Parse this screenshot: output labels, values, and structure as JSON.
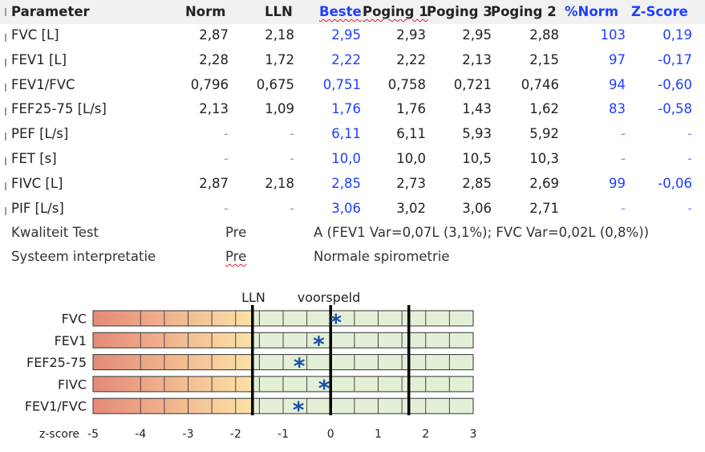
{
  "table": {
    "headers": {
      "parameter": "Parameter",
      "norm": "Norm",
      "lln": "LLN",
      "best": "Beste",
      "t1": "Poging 1",
      "t2": "Poging 3",
      "t3": "Poging 2",
      "pct": "%Norm",
      "z": "Z-Score"
    },
    "rows": [
      {
        "param": "FVC [L]",
        "norm": "2,87",
        "lln": "2,18",
        "best": "2,95",
        "t1": "2,93",
        "t2": "2,95",
        "t3": "2,88",
        "pct": "103",
        "z": "0,19"
      },
      {
        "param": "FEV1 [L]",
        "norm": "2,28",
        "lln": "1,72",
        "best": "2,22",
        "t1": "2,22",
        "t2": "2,13",
        "t3": "2,15",
        "pct": "97",
        "z": "-0,17"
      },
      {
        "param": "FEV1/FVC",
        "norm": "0,796",
        "lln": "0,675",
        "best": "0,751",
        "t1": "0,758",
        "t2": "0,721",
        "t3": "0,746",
        "pct": "94",
        "z": "-0,60"
      },
      {
        "param": "FEF25-75 [L/s]",
        "norm": "2,13",
        "lln": "1,09",
        "best": "1,76",
        "t1": "1,76",
        "t2": "1,43",
        "t3": "1,62",
        "pct": "83",
        "z": "-0,58"
      },
      {
        "param": "PEF [L/s]",
        "norm": "-",
        "lln": "-",
        "best": "6,11",
        "t1": "6,11",
        "t2": "5,93",
        "t3": "5,92",
        "pct": "-",
        "z": "-"
      },
      {
        "param": "FET [s]",
        "norm": "-",
        "lln": "-",
        "best": "10,0",
        "t1": "10,0",
        "t2": "10,5",
        "t3": "10,3",
        "pct": "-",
        "z": "-"
      },
      {
        "param": "FIVC [L]",
        "norm": "2,87",
        "lln": "2,18",
        "best": "2,85",
        "t1": "2,73",
        "t2": "2,85",
        "t3": "2,69",
        "pct": "99",
        "z": "-0,06"
      },
      {
        "param": "PIF [L/s]",
        "norm": "-",
        "lln": "-",
        "best": "3,06",
        "t1": "3,02",
        "t2": "3,06",
        "t3": "2,71",
        "pct": "-",
        "z": "-"
      }
    ]
  },
  "quality": {
    "label": "Kwaliteit Test",
    "phase": "Pre",
    "text": "A (FEV1 Var=0,07L (3,1%); FVC Var=0,02L (0,8%))"
  },
  "interpretation": {
    "label": "Systeem interpretatie",
    "phase": "Pre",
    "text": "Normale spirometrie"
  },
  "chart_data": {
    "type": "z-score-bar",
    "label_lln": "LLN",
    "label_predicted": "voorspeld",
    "xlabel": "z-score",
    "x_ticks": [
      "-5",
      "-4",
      "-3",
      "-2",
      "-1",
      "0",
      "1",
      "2",
      "3"
    ],
    "xlim": [
      -5,
      3
    ],
    "lln_z": -1.645,
    "predicted_z": 0,
    "uln_z": 1.645,
    "marker_symbol": "*",
    "rows": [
      {
        "name": "FVC",
        "z": 0.19
      },
      {
        "name": "FEV1",
        "z": -0.17
      },
      {
        "name": "FEF25-75",
        "z": -0.58
      },
      {
        "name": "FIVC",
        "z": -0.06
      },
      {
        "name": "FEV1/FVC",
        "z": -0.6
      }
    ],
    "colors": {
      "red_end": "#e58a78",
      "yellow_end": "#fbe2a6",
      "green": "#e3efd6",
      "marker": "#1a4ea8"
    }
  }
}
